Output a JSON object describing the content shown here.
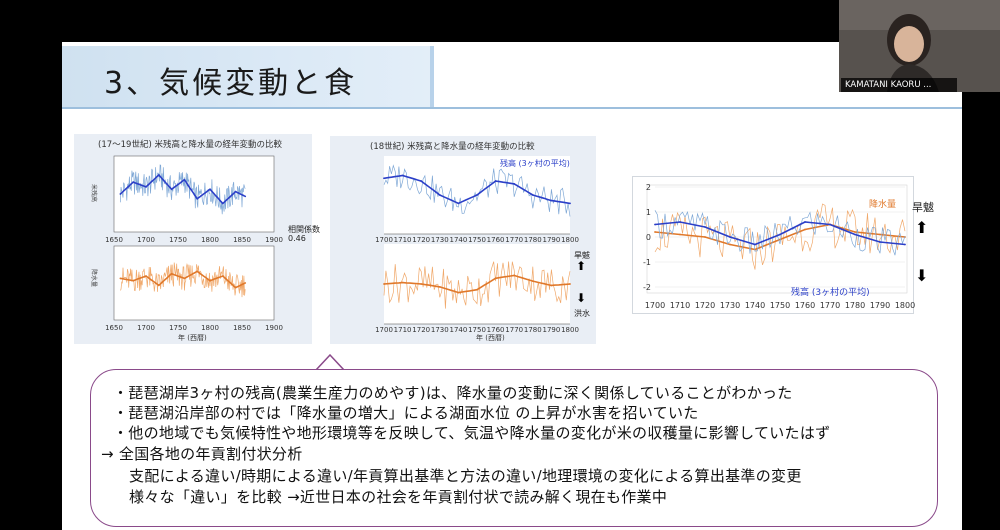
{
  "slide": {
    "title": "3、気候変動と食"
  },
  "webcam": {
    "participant_name": "KAMATANI KAORU ..."
  },
  "charts_meta": {
    "chart1_title": "(17〜19世紀) 米残高と降水量の経年変動の比較",
    "chart1_corr_label": "相関係数",
    "chart1_corr_value": "0.46",
    "chart1_xaxis_label": "年 (西暦)",
    "chart1_top_ylabel": "米残高",
    "chart1_bottom_ylabel": "降水量",
    "chart2_title": "(18世紀) 米残高と降水量の経年変動の比較",
    "chart2_legend": "残高 (3ヶ村の平均)",
    "chart2_xaxis_label": "年 (西暦)",
    "chart2_drought": "旱魃",
    "chart2_flood": "洪水",
    "chart3_legend_rain": "降水量",
    "chart3_legend_rice": "残高 (3ヶ村の平均)",
    "chart3_drought": "旱魃",
    "colors": {
      "blue": "#2b3fc8",
      "light_blue": "#7fa8d6",
      "orange": "#e0782a",
      "light_orange": "#f0a86a"
    }
  },
  "chart_data": [
    {
      "type": "line",
      "title": "(17〜19世紀) 米残高と降水量の経年変動の比較",
      "xlabel": "年 (西暦)",
      "x_ticks": [
        "1650",
        "1700",
        "1750",
        "1800",
        "1850",
        "1900"
      ],
      "xlim": [
        1650,
        1900
      ],
      "annotation": "相関係数 0.46",
      "panels": [
        {
          "name": "米残高",
          "series": [
            {
              "x": [
                1660,
                1680,
                1700,
                1720,
                1740,
                1760,
                1780,
                1800,
                1820,
                1840,
                1855
              ],
              "values": [
                0.0,
                0.5,
                0.3,
                0.8,
                0.2,
                0.6,
                -0.2,
                0.2,
                -0.4,
                0.1,
                -0.1
              ]
            }
          ]
        },
        {
          "name": "降水量",
          "series": [
            {
              "x": [
                1660,
                1680,
                1700,
                1720,
                1740,
                1760,
                1780,
                1800,
                1820,
                1840,
                1855
              ],
              "values": [
                0.2,
                0.1,
                0.3,
                -0.1,
                0.4,
                0.2,
                0.5,
                0.1,
                0.3,
                -0.2,
                0.0
              ]
            }
          ]
        }
      ]
    },
    {
      "type": "line",
      "title": "(18世紀) 米残高と降水量の経年変動の比較",
      "xlabel": "年 (西暦)",
      "x_ticks": [
        "1700",
        "1710",
        "1720",
        "1730",
        "1740",
        "1750",
        "1760",
        "1770",
        "1780",
        "1790",
        "1800"
      ],
      "xlim": [
        1700,
        1800
      ],
      "panels": [
        {
          "name": "残高 (3ヶ村の平均)",
          "series": [
            {
              "x": [
                1700,
                1710,
                1720,
                1730,
                1740,
                1750,
                1760,
                1770,
                1780,
                1790,
                1800
              ],
              "values": [
                0.6,
                0.7,
                0.5,
                0.0,
                -0.3,
                0.0,
                0.5,
                0.4,
                0.0,
                -0.2,
                -0.3
              ]
            }
          ]
        },
        {
          "name": "降水量",
          "series": [
            {
              "x": [
                1700,
                1710,
                1720,
                1730,
                1740,
                1750,
                1760,
                1770,
                1780,
                1790,
                1800
              ],
              "values": [
                0.0,
                0.05,
                0.0,
                -0.1,
                -0.3,
                -0.2,
                0.2,
                0.3,
                0.1,
                -0.05,
                0.0
              ]
            }
          ]
        }
      ]
    },
    {
      "type": "line",
      "x_ticks": [
        "1700",
        "1710",
        "1720",
        "1730",
        "1740",
        "1750",
        "1760",
        "1770",
        "1780",
        "1790",
        "1800"
      ],
      "y_ticks": [
        "2",
        "1",
        "0",
        "-1",
        "-2"
      ],
      "xlim": [
        1700,
        1800
      ],
      "ylim": [
        -2,
        2
      ],
      "series": [
        {
          "name": "残高 (3ヶ村の平均)",
          "x": [
            1700,
            1710,
            1720,
            1730,
            1740,
            1750,
            1760,
            1770,
            1780,
            1790,
            1800
          ],
          "values": [
            0.5,
            0.6,
            0.4,
            0.0,
            -0.3,
            0.1,
            0.6,
            0.5,
            0.1,
            -0.2,
            -0.3
          ]
        },
        {
          "name": "降水量",
          "x": [
            1700,
            1710,
            1720,
            1730,
            1740,
            1750,
            1760,
            1770,
            1780,
            1790,
            1800
          ],
          "values": [
            0.2,
            0.1,
            0.0,
            -0.3,
            -0.5,
            -0.1,
            0.3,
            0.5,
            0.2,
            0.1,
            0.0
          ]
        }
      ]
    }
  ],
  "text_box": {
    "lines": [
      "・琵琶湖岸3ヶ村の残高(農業生産力のめやす)は、降水量の変動に深く関係していることがわかった",
      "・琵琶湖沿岸部の村では「降水量の増大」による湖面水位 の上昇が水害を招いていた",
      "・他の地域でも気候特性や地形環境等を反映して、気温や降水量の変化が米の収穫量に影響していたはず",
      "→ 全国各地の年貢割付状分析",
      "支配による違い/時期による違い/年貢算出基準と方法の違い/地理環境の変化による算出基準の変更",
      "様々な「違い」を比較 →近世日本の社会を年貢割付状で読み解く現在も作業中"
    ]
  }
}
